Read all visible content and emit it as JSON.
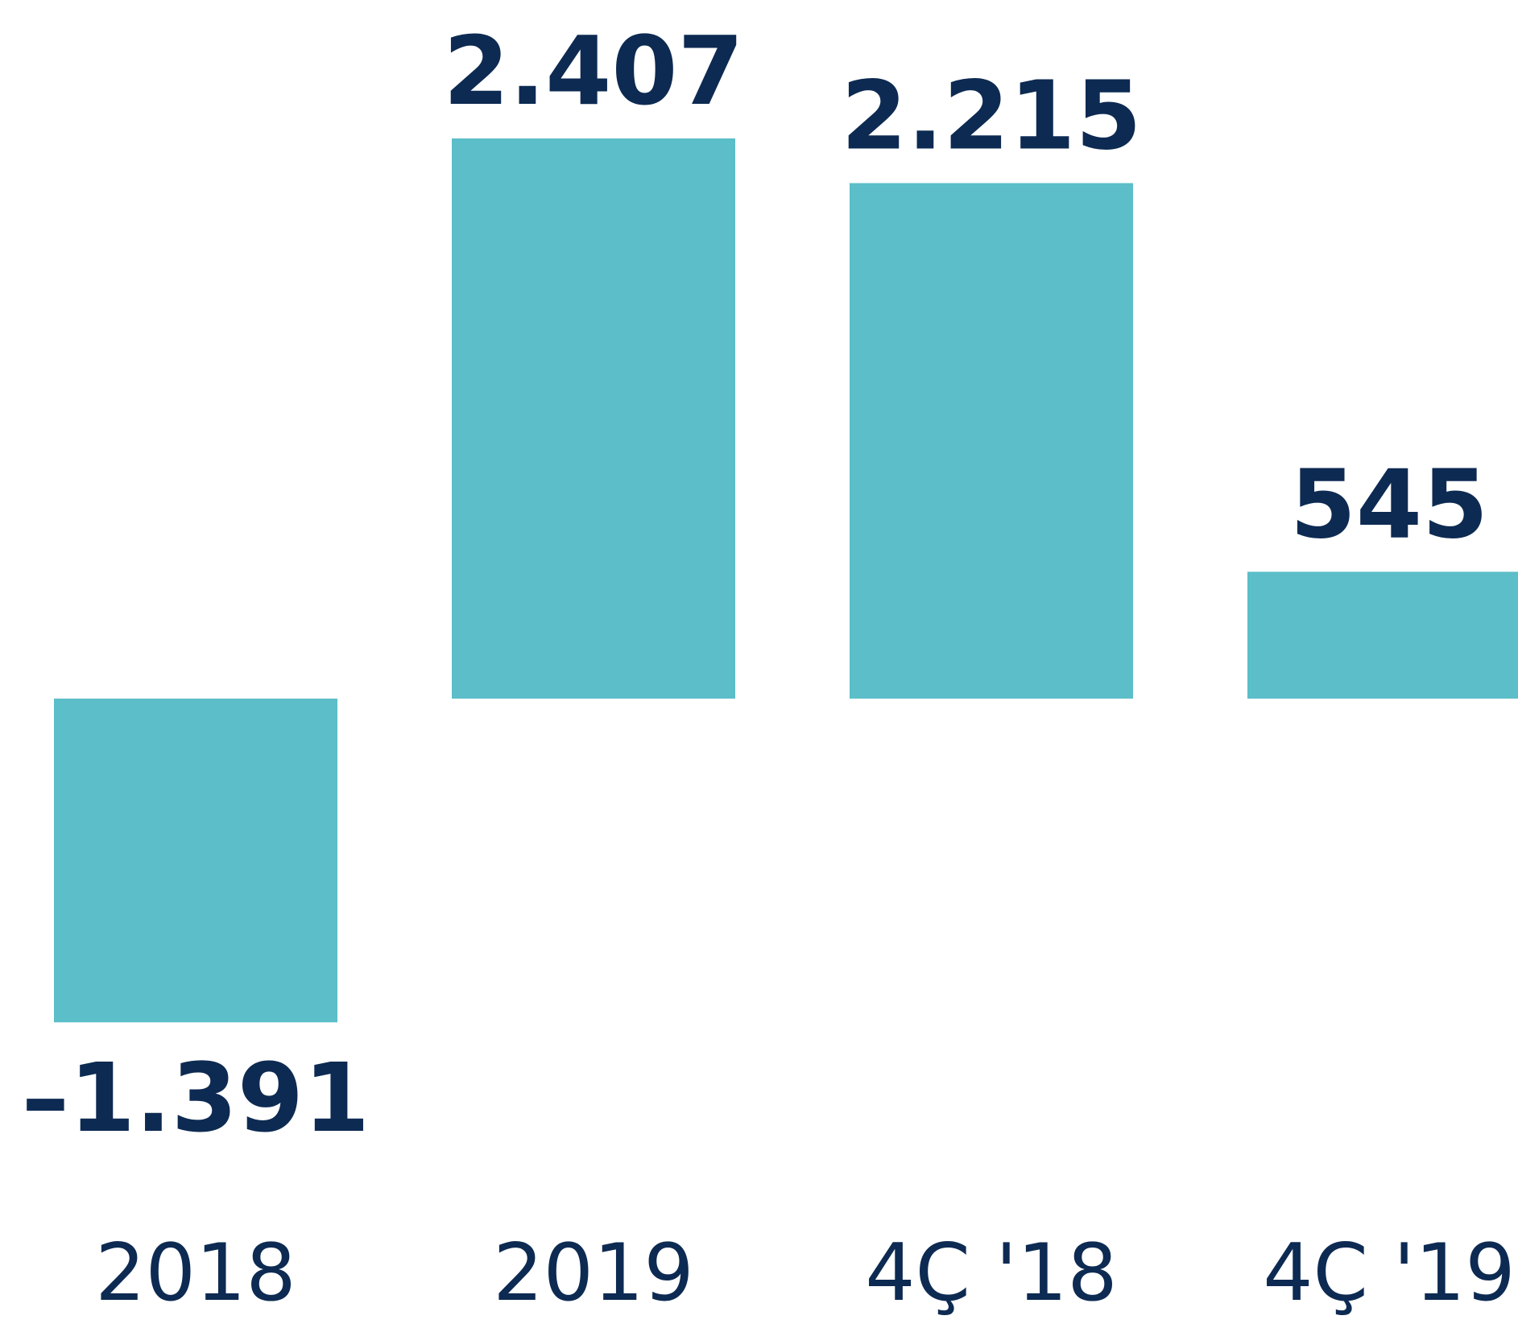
{
  "chart_data": {
    "type": "bar",
    "categories": [
      "2018",
      "2019",
      "4Ç '18",
      "4Ç '19"
    ],
    "values": [
      -1391,
      2407,
      2215,
      545
    ],
    "value_labels": [
      "–1.391",
      "2.407",
      "2.215",
      "545"
    ],
    "color": "#5bbec8"
  }
}
